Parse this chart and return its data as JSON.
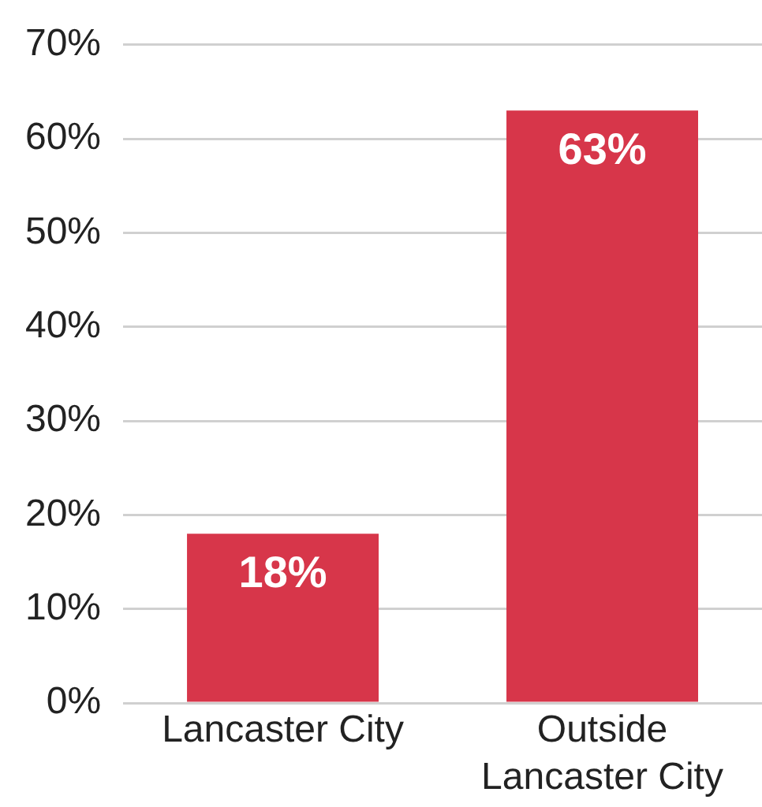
{
  "chart_data": {
    "type": "bar",
    "categories": [
      "Lancaster City",
      "Outside Lancaster City"
    ],
    "values": [
      18,
      63
    ],
    "color": "#d7364a",
    "value_labels": [
      "18%",
      "63%"
    ],
    "ylim": [
      0,
      70
    ],
    "yticks": [
      {
        "value": 0,
        "label": "0%"
      },
      {
        "value": 10,
        "label": "10%"
      },
      {
        "value": 20,
        "label": "20%"
      },
      {
        "value": 30,
        "label": "30%"
      },
      {
        "value": 40,
        "label": "40%"
      },
      {
        "value": 50,
        "label": "50%"
      },
      {
        "value": 60,
        "label": "60%"
      },
      {
        "value": 70,
        "label": "70%"
      }
    ],
    "grid": "y",
    "legend": false
  }
}
